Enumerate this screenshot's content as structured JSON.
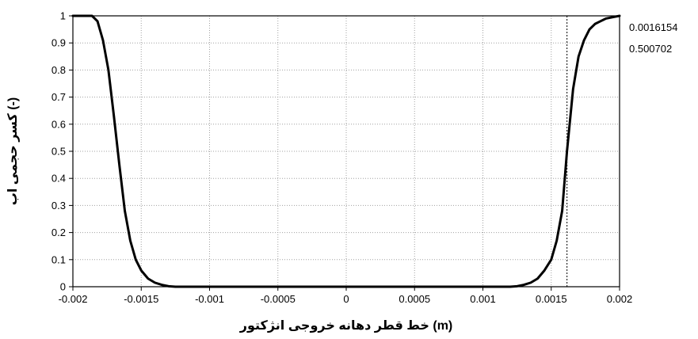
{
  "chart_data": {
    "type": "line",
    "title": "",
    "xlabel": "(m) خط قطر دهانه خروجی انژکتور",
    "ylabel": "(-) کسر حجمی اب",
    "xlim": [
      -0.002,
      0.002
    ],
    "ylim": [
      0,
      1
    ],
    "x_ticks": [
      "-0.002",
      "-0.0015",
      "-0.001",
      "-0.0005",
      "0",
      "0.0005",
      "0.001",
      "0.0015",
      "0.002"
    ],
    "y_ticks": [
      "0",
      "0.1",
      "0.2",
      "0.3",
      "0.4",
      "0.5",
      "0.6",
      "0.7",
      "0.8",
      "0.9",
      "1"
    ],
    "grid": true,
    "grid_style": "dotted",
    "series": [
      {
        "color": "#000000",
        "x": [
          -0.002,
          -0.00186,
          -0.00182,
          -0.00178,
          -0.00174,
          -0.0017,
          -0.00166,
          -0.00162,
          -0.00158,
          -0.00154,
          -0.0015,
          -0.00145,
          -0.0014,
          -0.00135,
          -0.0013,
          -0.00125,
          -0.0012,
          0,
          0.0012,
          0.00125,
          0.0013,
          0.00135,
          0.0014,
          0.00145,
          0.0015,
          0.00154,
          0.00158,
          0.0016154,
          0.00166,
          0.0017,
          0.00174,
          0.00178,
          0.00182,
          0.00186,
          0.0019,
          0.00195,
          0.002
        ],
        "y": [
          1.0,
          1.0,
          0.98,
          0.91,
          0.8,
          0.63,
          0.45,
          0.28,
          0.17,
          0.1,
          0.06,
          0.03,
          0.015,
          0.007,
          0.002,
          0.0,
          0.0,
          0.0,
          0.0,
          0.002,
          0.007,
          0.015,
          0.03,
          0.06,
          0.1,
          0.17,
          0.28,
          0.500702,
          0.73,
          0.85,
          0.91,
          0.95,
          0.97,
          0.98,
          0.99,
          0.995,
          1.0
        ]
      }
    ],
    "cursor": {
      "x": 0.0016154,
      "y": 0.500702,
      "x_label": "0.0016154",
      "y_label": "0.500702"
    }
  }
}
